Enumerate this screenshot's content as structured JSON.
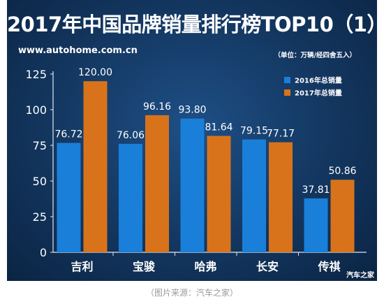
{
  "title": "2017年中国品牌销量排行榜TOP10（1）",
  "website": "www.autohome.com.cn",
  "unit_note": "（单位：万辆/经四舍五入）",
  "watermark": "汽车之家",
  "caption": "（图片来源：汽车之家）",
  "colors": {
    "series_2016": "#1a7fd8",
    "series_2017": "#d8731c",
    "text": "#ffffff",
    "axis": "#e0e6ee"
  },
  "chart_data": {
    "type": "bar",
    "categories": [
      "吉利",
      "宝骏",
      "哈弗",
      "长安",
      "传祺"
    ],
    "series": [
      {
        "name": "2016年总销量",
        "values": [
          76.72,
          76.06,
          93.8,
          79.15,
          37.81
        ],
        "labels": [
          "76.72",
          "76.06",
          "93.80",
          "79.15",
          "37.81"
        ]
      },
      {
        "name": "2017年总销量",
        "values": [
          120.0,
          96.16,
          81.64,
          77.17,
          50.86
        ],
        "labels": [
          "120.00",
          "96.16",
          "81.64",
          "77.17",
          "50.86"
        ]
      }
    ],
    "yticks": [
      0,
      25,
      50,
      75,
      100,
      125
    ],
    "ylim": [
      0,
      125
    ],
    "grid": false,
    "legend_position": "top-right"
  }
}
